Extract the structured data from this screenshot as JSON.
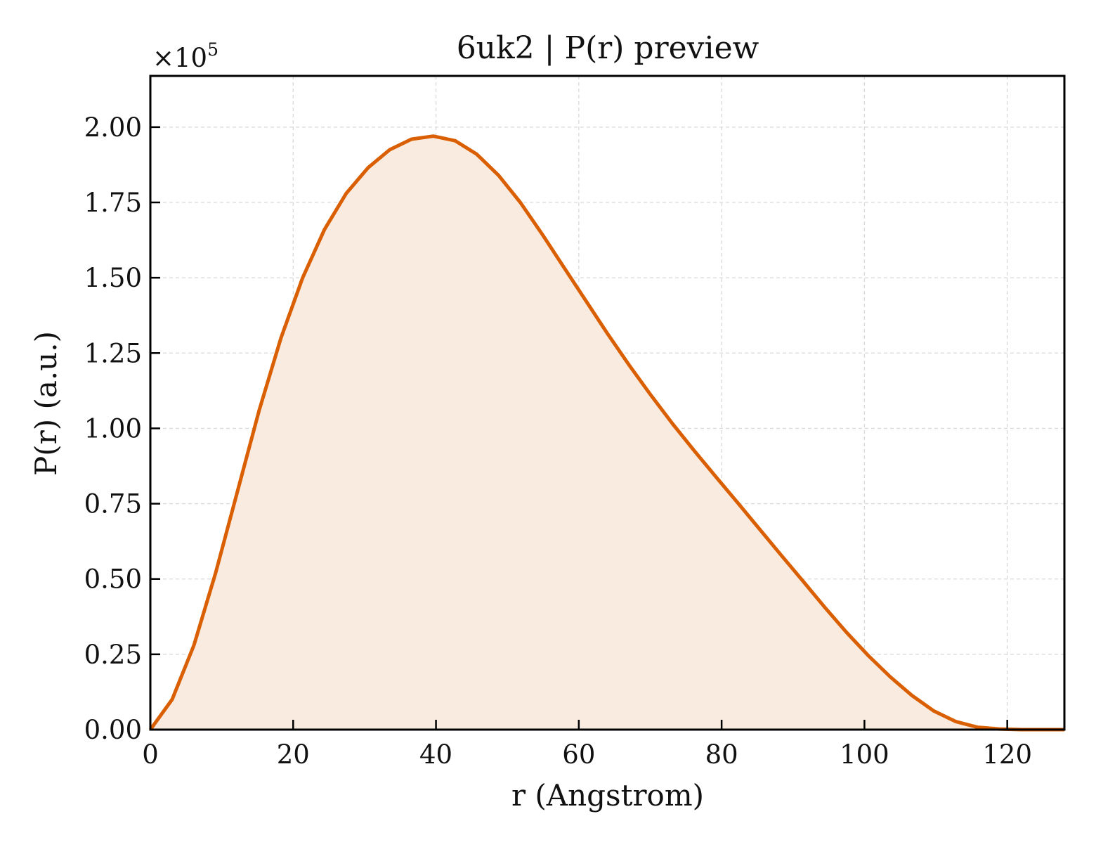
{
  "chart_data": {
    "type": "area",
    "title": "6uk2 | P(r) preview",
    "xlabel": "r (Angstrom)",
    "ylabel": "P(r) (a.u.)",
    "y_offset_label": "×10",
    "y_offset_exponent": "5",
    "y_scale_factor": 100000,
    "xlim": [
      0,
      128
    ],
    "ylim": [
      0,
      2.17
    ],
    "xticks": [
      0,
      20,
      40,
      60,
      80,
      100,
      120
    ],
    "xtick_labels": [
      "0",
      "20",
      "40",
      "60",
      "80",
      "100",
      "120"
    ],
    "yticks": [
      0,
      0.25,
      0.5,
      0.75,
      1.0,
      1.25,
      1.5,
      1.75,
      2.0
    ],
    "ytick_labels": [
      "0.00",
      "0.25",
      "0.50",
      "0.75",
      "1.00",
      "1.25",
      "1.50",
      "1.75",
      "2.00"
    ],
    "grid": true,
    "tick_direction": "in",
    "colors": {
      "line": "#d95f02",
      "fill": "#f9ebe0",
      "grid": "#d9d9d9",
      "axes": "#000000"
    },
    "series": [
      {
        "x": [
          0,
          3.05,
          6.1,
          9.14,
          12.19,
          15.24,
          18.29,
          21.33,
          24.38,
          27.43,
          30.48,
          33.52,
          36.57,
          39.62,
          42.67,
          45.71,
          48.76,
          51.81,
          54.86,
          57.9,
          60.95,
          64.0,
          67.05,
          70.1,
          73.14,
          76.19,
          79.24,
          82.29,
          85.33,
          88.38,
          91.43,
          94.48,
          97.52,
          100.57,
          103.62,
          106.67,
          109.71,
          112.76,
          115.81,
          118.86,
          121.9,
          124.95,
          128.0
        ],
        "y": [
          0.0,
          0.1,
          0.28,
          0.52,
          0.79,
          1.06,
          1.3,
          1.5,
          1.66,
          1.78,
          1.865,
          1.925,
          1.96,
          1.97,
          1.955,
          1.91,
          1.84,
          1.75,
          1.645,
          1.535,
          1.425,
          1.315,
          1.21,
          1.11,
          1.015,
          0.925,
          0.838,
          0.752,
          0.665,
          0.578,
          0.492,
          0.405,
          0.322,
          0.245,
          0.175,
          0.113,
          0.062,
          0.027,
          0.008,
          0.002,
          0.0,
          0.0,
          0.0
        ]
      }
    ]
  }
}
